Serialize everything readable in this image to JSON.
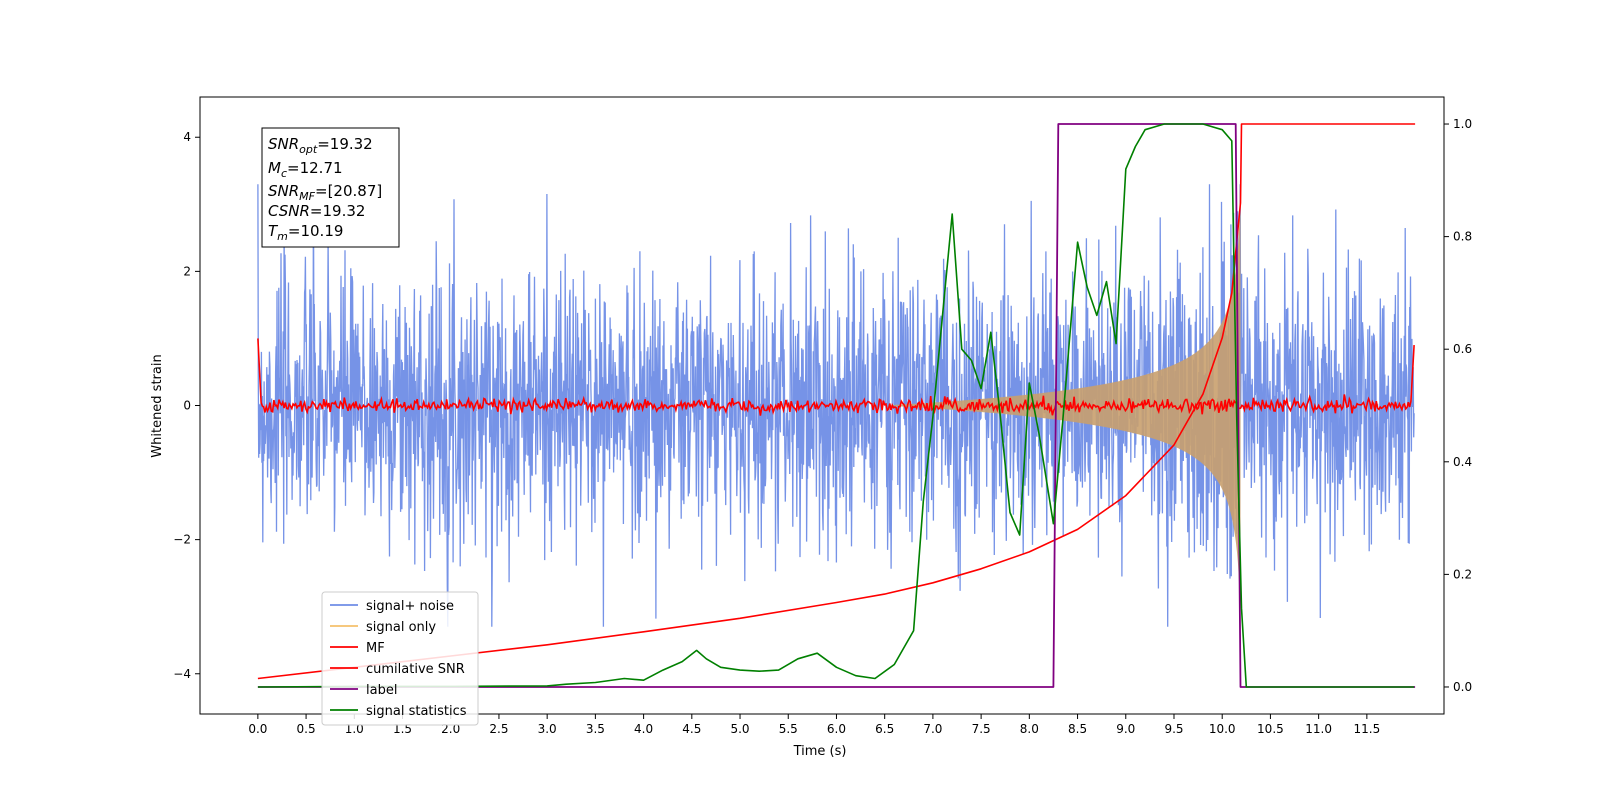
{
  "chart_data": {
    "type": "line",
    "xlabel": "Time (s)",
    "ylabel": "Whitened strain",
    "xlim": [
      -0.6,
      12.3
    ],
    "ylim": [
      -4.6,
      4.6
    ],
    "y2lim": [
      -0.048,
      1.048
    ],
    "x_ticks": [
      "0.0",
      "0.5",
      "1.0",
      "1.5",
      "2.0",
      "2.5",
      "3.0",
      "3.5",
      "4.0",
      "4.5",
      "5.0",
      "5.5",
      "6.0",
      "6.5",
      "7.0",
      "7.5",
      "8.0",
      "8.5",
      "9.0",
      "9.5",
      "10.0",
      "10.5",
      "11.0",
      "11.5"
    ],
    "y_ticks": [
      "-4",
      "-2",
      "0",
      "2",
      "4"
    ],
    "y2_ticks": [
      "0.0",
      "0.2",
      "0.4",
      "0.6",
      "0.8",
      "1.0"
    ],
    "grid": false,
    "legend_position": "lower-left",
    "annotation": {
      "lines": [
        {
          "base": "SNR",
          "sub": "opt",
          "value": "=19.32"
        },
        {
          "base": "M",
          "sub": "c",
          "value": "=12.71"
        },
        {
          "base": "SNR",
          "sub": "MF",
          "value": "=[20.87]"
        },
        {
          "base": "CSNR",
          "sub": "",
          "value": "=19.32"
        },
        {
          "base": "T",
          "sub": "m",
          "value": "=10.19"
        }
      ]
    },
    "series": [
      {
        "name": "signal+ noise",
        "color": "#6f8de6",
        "axis": "left",
        "noise_amplitude": 1.0,
        "x_range": [
          0.0,
          11.99
        ]
      },
      {
        "name": "signal only",
        "color": "#f5c16b",
        "axis": "left",
        "chirp_start": 6.5,
        "chirp_end": 10.19,
        "peak_amplitude": 3.2
      },
      {
        "name": "MF",
        "color": "#ff0000",
        "axis": "left",
        "level": 0.0,
        "edge_values": [
          1.0,
          0.9
        ]
      },
      {
        "name": "cumilative SNR",
        "color": "#ff0000",
        "axis": "right",
        "x": [
          0.0,
          1.0,
          2.0,
          3.0,
          4.0,
          5.0,
          6.0,
          6.5,
          7.0,
          7.5,
          8.0,
          8.5,
          9.0,
          9.5,
          9.8,
          10.0,
          10.1,
          10.19,
          10.2,
          12.0
        ],
        "y": [
          0.015,
          0.035,
          0.055,
          0.075,
          0.098,
          0.122,
          0.15,
          0.165,
          0.185,
          0.21,
          0.24,
          0.28,
          0.34,
          0.43,
          0.52,
          0.62,
          0.7,
          0.86,
          1.0,
          1.0
        ]
      },
      {
        "name": "label",
        "color": "#800080",
        "axis": "right",
        "x": [
          0.0,
          8.25,
          8.3,
          10.14,
          10.19,
          12.0
        ],
        "y": [
          0.0,
          0.0,
          1.0,
          1.0,
          0.0,
          0.0
        ]
      },
      {
        "name": "signal statistics",
        "color": "#008000",
        "axis": "right",
        "x": [
          0.0,
          1.0,
          2.0,
          3.0,
          3.2,
          3.5,
          3.8,
          4.0,
          4.2,
          4.4,
          4.55,
          4.65,
          4.8,
          5.0,
          5.2,
          5.4,
          5.6,
          5.8,
          6.0,
          6.2,
          6.4,
          6.6,
          6.8,
          6.9,
          7.0,
          7.1,
          7.2,
          7.3,
          7.4,
          7.5,
          7.6,
          7.7,
          7.8,
          7.9,
          8.0,
          8.1,
          8.25,
          8.35,
          8.5,
          8.6,
          8.7,
          8.8,
          8.9,
          9.0,
          9.1,
          9.2,
          9.4,
          9.6,
          9.8,
          10.0,
          10.1,
          10.15,
          10.2,
          10.25,
          11.0,
          11.99
        ],
        "y": [
          0.0,
          0.001,
          0.001,
          0.002,
          0.005,
          0.008,
          0.015,
          0.012,
          0.03,
          0.045,
          0.065,
          0.05,
          0.035,
          0.03,
          0.028,
          0.03,
          0.05,
          0.06,
          0.035,
          0.02,
          0.015,
          0.04,
          0.1,
          0.33,
          0.48,
          0.66,
          0.84,
          0.6,
          0.58,
          0.53,
          0.63,
          0.48,
          0.31,
          0.27,
          0.54,
          0.45,
          0.29,
          0.48,
          0.79,
          0.71,
          0.66,
          0.72,
          0.61,
          0.92,
          0.96,
          0.99,
          1.0,
          1.0,
          1.0,
          0.99,
          0.97,
          0.48,
          0.14,
          0.0,
          0.0,
          0.0
        ]
      }
    ]
  }
}
